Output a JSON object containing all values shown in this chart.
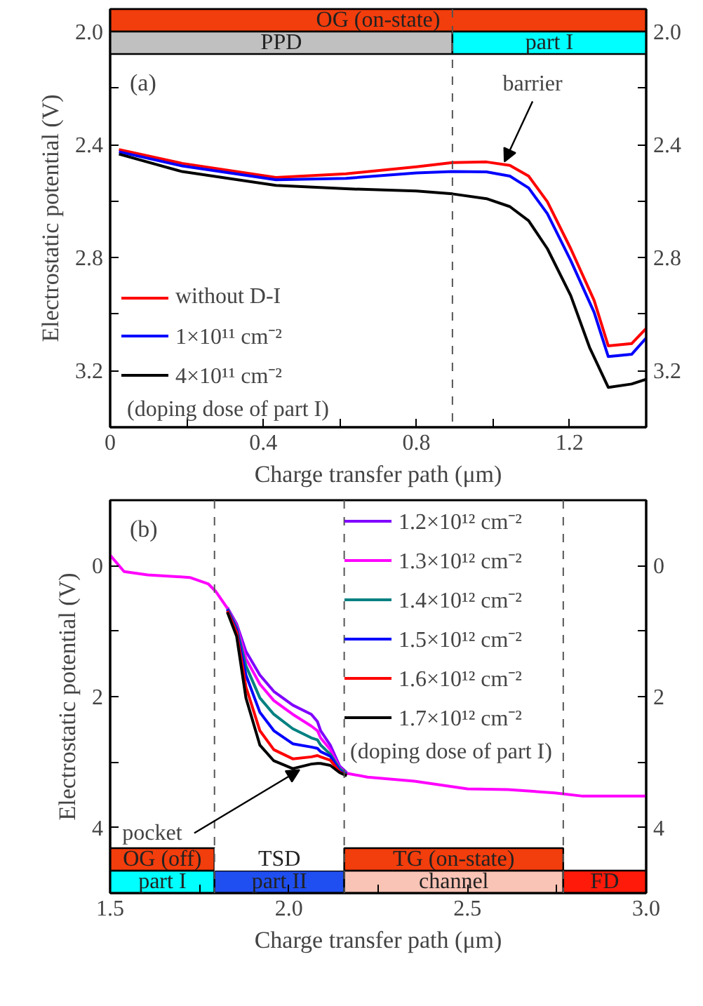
{
  "chart_data": [
    {
      "type": "line",
      "title": "(a)",
      "xlabel": "Charge transfer path (μm)",
      "ylabel": "Electrostatic potential (V)",
      "legend_title": "(doping dose of part I)",
      "legend": "bottom left",
      "xlim": [
        0,
        1.4
      ],
      "ylim": [
        3.4,
        1.92
      ],
      "y2lim": [
        3.4,
        1.92
      ],
      "xticks": [
        0,
        {
          "value": 0.2,
          "label": null
        },
        0.4,
        {
          "value": 0.6,
          "label": null
        },
        0.8,
        {
          "value": 1.0,
          "label": null
        },
        1.2
      ],
      "yticks": [
        {
          "value": 2.0,
          "label": "2.0"
        },
        {
          "value": 2.2,
          "label": null
        },
        2.4,
        {
          "value": 2.6,
          "label": null
        },
        2.8,
        {
          "value": 3.0,
          "label": null
        },
        3.2
      ],
      "y2ticks": [
        {
          "value": 2.0,
          "label": "2.0"
        },
        {
          "value": 2.2,
          "label": null
        },
        2.4,
        {
          "value": 2.6,
          "label": null
        },
        2.8,
        {
          "value": 3.0,
          "label": null
        },
        3.2
      ],
      "series": [
        {
          "name": "without D-I",
          "color": "#ff0000",
          "x": [
            0.023,
            0.188,
            0.433,
            0.616,
            0.8,
            0.894,
            0.983,
            1.044,
            1.093,
            1.142,
            1.203,
            1.264,
            1.301,
            1.362,
            1.4
          ],
          "values": [
            2.417,
            2.466,
            2.516,
            2.503,
            2.478,
            2.463,
            2.461,
            2.473,
            2.511,
            2.602,
            2.768,
            2.951,
            3.112,
            3.104,
            3.05
          ]
        },
        {
          "name": "1×10¹¹ cm⁻²",
          "color": "#0000ff",
          "x": [
            0.023,
            0.188,
            0.433,
            0.616,
            0.8,
            0.894,
            0.983,
            1.044,
            1.093,
            1.142,
            1.203,
            1.264,
            1.301,
            1.362,
            1.4
          ],
          "values": [
            2.425,
            2.475,
            2.524,
            2.519,
            2.5,
            2.495,
            2.496,
            2.511,
            2.553,
            2.644,
            2.81,
            2.993,
            3.15,
            3.142,
            3.084
          ]
        },
        {
          "name": "4×10¹¹ cm⁻²",
          "color": "#000000",
          "x": [
            0.023,
            0.188,
            0.433,
            0.616,
            0.8,
            0.894,
            0.983,
            1.044,
            1.093,
            1.142,
            1.203,
            1.252,
            1.301,
            1.362,
            1.4
          ],
          "values": [
            2.433,
            2.495,
            2.544,
            2.556,
            2.564,
            2.574,
            2.591,
            2.619,
            2.669,
            2.768,
            2.934,
            3.117,
            3.259,
            3.247,
            3.23
          ]
        }
      ],
      "ref_lines": [
        {
          "axis": "x",
          "value": 0.894,
          "line_style": "dashed"
        }
      ],
      "bands": [
        {
          "axis": "x",
          "from": 0,
          "to": 1.4,
          "label": "OG (on-state)",
          "color": "#f23d0c"
        },
        {
          "axis": "x",
          "from": 0,
          "to": 0.894,
          "label": "PPD",
          "color": "#c0c0c0"
        },
        {
          "axis": "x",
          "from": 0.894,
          "to": 1.4,
          "label": "part I",
          "color": "#00ffff"
        }
      ],
      "annotations": [
        {
          "text": "barrier",
          "x": 1.03,
          "y": 2.46
        }
      ]
    },
    {
      "type": "line",
      "title": "(b)",
      "xlabel": "Charge transfer path (μm)",
      "ylabel": "Electrostatic potential (V)",
      "legend_title": "(doping dose of part I)",
      "legend": "top right",
      "xlim": [
        1.5,
        3.0
      ],
      "ylim": [
        5,
        -1
      ],
      "y2lim": [
        5,
        -1
      ],
      "xticks": [
        1.5,
        {
          "value": 1.75,
          "label": null
        },
        {
          "value": 2.0,
          "label": "2.0"
        },
        {
          "value": 2.25,
          "label": null
        },
        2.5,
        {
          "value": 2.75,
          "label": null
        },
        {
          "value": 3.0,
          "label": "3.0"
        }
      ],
      "yticks": [
        0,
        {
          "value": 1,
          "label": null
        },
        2,
        {
          "value": 3,
          "label": null
        },
        4
      ],
      "y2ticks": [
        0,
        {
          "value": 1,
          "label": null
        },
        2,
        {
          "value": 3,
          "label": null
        },
        4
      ],
      "series": [
        {
          "name": "1.2×10¹² cm⁻²",
          "color": "#8000ff",
          "x": [
            1.828,
            1.854,
            1.88,
            1.919,
            1.958,
            2.011,
            2.063,
            2.08,
            2.089,
            2.116,
            2.142,
            2.162
          ],
          "values": [
            0.64,
            0.89,
            1.31,
            1.67,
            1.92,
            2.13,
            2.27,
            2.38,
            2.52,
            2.74,
            3.06,
            3.16
          ]
        },
        {
          "name": "1.3×10¹² cm⁻²",
          "color": "#ff00ff",
          "x": [
            1.5,
            1.539,
            1.605,
            1.723,
            1.775,
            1.795,
            1.828,
            1.854,
            1.88,
            1.919,
            1.958,
            2.011,
            2.063,
            2.08,
            2.089,
            2.116,
            2.142,
            2.162,
            2.22,
            2.351,
            2.5,
            2.613,
            2.744,
            2.823,
            3.0
          ],
          "values": [
            -0.16,
            0.09,
            0.14,
            0.18,
            0.28,
            0.39,
            0.65,
            0.92,
            1.42,
            1.81,
            2.06,
            2.27,
            2.45,
            2.52,
            2.63,
            2.81,
            3.09,
            3.17,
            3.23,
            3.29,
            3.41,
            3.42,
            3.47,
            3.52,
            3.52
          ]
        },
        {
          "name": "1.4×10¹² cm⁻²",
          "color": "#008080",
          "x": [
            1.828,
            1.854,
            1.88,
            1.919,
            1.958,
            2.011,
            2.063,
            2.08,
            2.089,
            2.116,
            2.142,
            2.162
          ],
          "values": [
            0.66,
            0.95,
            1.53,
            2.02,
            2.27,
            2.49,
            2.63,
            2.66,
            2.74,
            2.88,
            3.1,
            3.18
          ]
        },
        {
          "name": "1.5×10¹² cm⁻²",
          "color": "#0000ff",
          "x": [
            1.828,
            1.854,
            1.88,
            1.919,
            1.958,
            2.011,
            2.063,
            2.08,
            2.089,
            2.116,
            2.142,
            2.162
          ],
          "values": [
            0.67,
            0.98,
            1.67,
            2.24,
            2.52,
            2.72,
            2.77,
            2.79,
            2.84,
            2.91,
            3.13,
            3.19
          ]
        },
        {
          "name": "1.6×10¹² cm⁻²",
          "color": "#ff0000",
          "x": [
            1.828,
            1.854,
            1.88,
            1.919,
            1.958,
            2.011,
            2.063,
            2.08,
            2.089,
            2.116,
            2.142,
            2.162
          ],
          "values": [
            0.69,
            1.02,
            1.85,
            2.52,
            2.81,
            2.95,
            2.92,
            2.9,
            2.92,
            2.97,
            3.15,
            3.2
          ]
        },
        {
          "name": "1.7×10¹² cm⁻²",
          "color": "#000000",
          "x": [
            1.828,
            1.854,
            1.88,
            1.919,
            1.958,
            2.011,
            2.063,
            2.08,
            2.089,
            2.116,
            2.142,
            2.162
          ],
          "values": [
            0.71,
            1.08,
            2.02,
            2.74,
            2.98,
            3.1,
            3.03,
            3.02,
            3.02,
            3.05,
            3.16,
            3.21
          ]
        }
      ],
      "ref_lines": [
        {
          "axis": "x",
          "value": 1.792,
          "line_style": "dashed"
        },
        {
          "axis": "x",
          "value": 2.155,
          "line_style": "dashed"
        },
        {
          "axis": "x",
          "value": 2.768,
          "line_style": "dashed"
        }
      ],
      "bands": [
        {
          "axis": "x",
          "from": 1.5,
          "to": 1.792,
          "label": "part I",
          "color": "#00ffff"
        },
        {
          "axis": "x",
          "from": 1.792,
          "to": 2.155,
          "label": "part II",
          "color": "#1f4ff0"
        },
        {
          "axis": "x",
          "from": 2.155,
          "to": 2.768,
          "label": "channel",
          "color": "#f9c3b5"
        },
        {
          "axis": "x",
          "from": 2.768,
          "to": 3.0,
          "label": "FD",
          "color": "#ff1a0a"
        },
        {
          "axis": "x",
          "from": 1.5,
          "to": 1.792,
          "label": "OG (off)",
          "color": "#f23d0c"
        },
        {
          "axis": "x",
          "from": 1.792,
          "to": 2.155,
          "label": "TSD",
          "color": "#ffffff"
        },
        {
          "axis": "x",
          "from": 2.155,
          "to": 2.768,
          "label": "TG (on-state)",
          "color": "#f23d0c"
        }
      ],
      "annotations": [
        {
          "text": "pocket",
          "x": 2.03,
          "y": 3.12
        }
      ]
    }
  ]
}
